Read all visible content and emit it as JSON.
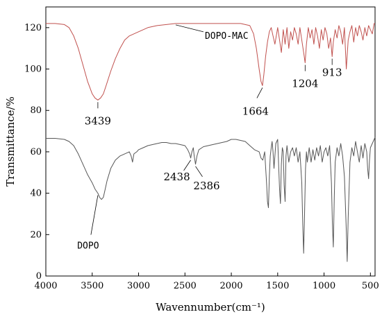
{
  "chart_data": {
    "type": "line",
    "title": "",
    "xlabel": "Wavennumber(cm⁻¹)",
    "ylabel": "Transmittance/%",
    "xlim": [
      4000,
      450
    ],
    "ylim": [
      0,
      130
    ],
    "x_axis_reversed": true,
    "x_ticks": [
      4000,
      3500,
      3000,
      2500,
      2000,
      1500,
      1000,
      500
    ],
    "y_ticks": [
      0,
      20,
      40,
      60,
      80,
      100,
      120
    ],
    "grid": false,
    "legend": "none",
    "series": [
      {
        "name": "DOPO-MAC",
        "color": "#c0504d",
        "x": [
          4000,
          3900,
          3800,
          3750,
          3700,
          3650,
          3600,
          3550,
          3500,
          3470,
          3439,
          3410,
          3380,
          3350,
          3300,
          3250,
          3200,
          3150,
          3100,
          3000,
          2900,
          2800,
          2700,
          2600,
          2500,
          2400,
          2300,
          2200,
          2100,
          2000,
          1900,
          1800,
          1760,
          1730,
          1700,
          1680,
          1664,
          1650,
          1630,
          1610,
          1590,
          1570,
          1550,
          1530,
          1500,
          1480,
          1460,
          1440,
          1420,
          1400,
          1380,
          1360,
          1340,
          1320,
          1300,
          1280,
          1260,
          1240,
          1220,
          1204,
          1190,
          1170,
          1150,
          1130,
          1110,
          1090,
          1070,
          1050,
          1030,
          1010,
          990,
          970,
          950,
          930,
          913,
          900,
          880,
          860,
          840,
          820,
          800,
          780,
          760,
          740,
          720,
          700,
          680,
          660,
          640,
          620,
          600,
          580,
          560,
          540,
          520,
          500,
          480,
          460,
          450
        ],
        "y": [
          122,
          122,
          121.5,
          120,
          116,
          110,
          102,
          94,
          88,
          86,
          85,
          86,
          88,
          92,
          99,
          105,
          110,
          114,
          116,
          118,
          120,
          121,
          121.5,
          122,
          122,
          122,
          122,
          122,
          122,
          122,
          122,
          121,
          117,
          110,
          100,
          94,
          92,
          97,
          106,
          113,
          118,
          120,
          116,
          112,
          120,
          114,
          108,
          119,
          112,
          120,
          110,
          118,
          114,
          120,
          117,
          112,
          120,
          114,
          108,
          103,
          112,
          120,
          115,
          119,
          112,
          120,
          116,
          110,
          119,
          114,
          120,
          117,
          110,
          115,
          106,
          113,
          119,
          115,
          121,
          118,
          112,
          120,
          100,
          114,
          118,
          121,
          113,
          120,
          116,
          121,
          118,
          114,
          120,
          116,
          121,
          119,
          117,
          122,
          122
        ]
      },
      {
        "name": "DOPO",
        "color": "#555555",
        "x": [
          4000,
          3900,
          3800,
          3750,
          3700,
          3650,
          3600,
          3550,
          3500,
          3470,
          3439,
          3420,
          3400,
          3380,
          3360,
          3340,
          3300,
          3250,
          3200,
          3150,
          3100,
          3080,
          3065,
          3050,
          3020,
          3000,
          2950,
          2900,
          2850,
          2800,
          2750,
          2700,
          2650,
          2600,
          2550,
          2500,
          2470,
          2450,
          2438,
          2425,
          2410,
          2400,
          2386,
          2370,
          2350,
          2300,
          2250,
          2200,
          2150,
          2100,
          2050,
          2000,
          1950,
          1900,
          1850,
          1800,
          1750,
          1700,
          1680,
          1660,
          1640,
          1620,
          1610,
          1600,
          1590,
          1580,
          1570,
          1560,
          1550,
          1540,
          1520,
          1500,
          1480,
          1470,
          1460,
          1450,
          1440,
          1430,
          1420,
          1410,
          1400,
          1380,
          1360,
          1340,
          1320,
          1300,
          1280,
          1260,
          1240,
          1230,
          1220,
          1210,
          1200,
          1190,
          1180,
          1160,
          1140,
          1120,
          1100,
          1080,
          1060,
          1040,
          1020,
          1000,
          980,
          960,
          940,
          920,
          910,
          900,
          890,
          880,
          860,
          840,
          820,
          800,
          780,
          760,
          750,
          740,
          720,
          700,
          680,
          660,
          640,
          620,
          600,
          580,
          560,
          540,
          530,
          520,
          510,
          500,
          480,
          460,
          450
        ],
        "y": [
          66.5,
          66.5,
          66,
          65,
          63,
          59,
          54,
          49,
          45,
          42,
          40,
          38,
          37,
          38,
          42,
          46,
          52,
          56,
          58,
          59,
          60,
          58,
          55,
          59,
          60,
          61,
          62,
          63,
          63.5,
          64,
          64.5,
          64.5,
          64,
          64,
          63.5,
          63,
          61,
          59,
          57,
          60,
          62,
          58,
          54,
          58,
          61,
          62.5,
          63,
          63.5,
          64,
          64.5,
          65,
          66,
          66,
          65.5,
          65,
          63,
          61,
          60,
          57,
          56,
          60,
          45,
          36,
          33,
          48,
          58,
          62,
          65,
          60,
          52,
          64,
          66,
          42,
          35,
          54,
          62,
          60,
          44,
          36,
          58,
          63,
          55,
          60,
          62,
          58,
          62,
          55,
          60,
          45,
          25,
          11,
          30,
          52,
          60,
          55,
          62,
          55,
          61,
          56,
          62,
          58,
          63,
          55,
          60,
          62,
          58,
          63,
          45,
          25,
          14,
          38,
          55,
          62,
          58,
          64,
          58,
          48,
          22,
          7,
          28,
          55,
          62,
          58,
          65,
          60,
          55,
          63,
          57,
          64,
          60,
          52,
          47,
          56,
          62,
          64,
          66,
          67
        ]
      }
    ],
    "annotations": [
      {
        "text": "DOPO-MAC",
        "x": 2450,
        "y": 122
      },
      {
        "text": "3439",
        "x": 3439,
        "y": 85
      },
      {
        "text": "1664",
        "x": 1664,
        "y": 92
      },
      {
        "text": "1204",
        "x": 1204,
        "y": 103
      },
      {
        "text": "913",
        "x": 913,
        "y": 106
      },
      {
        "text": "2438",
        "x": 2438,
        "y": 57
      },
      {
        "text": "2386",
        "x": 2386,
        "y": 54
      },
      {
        "text": "DOPO",
        "x": 3439,
        "y": 40
      }
    ]
  }
}
